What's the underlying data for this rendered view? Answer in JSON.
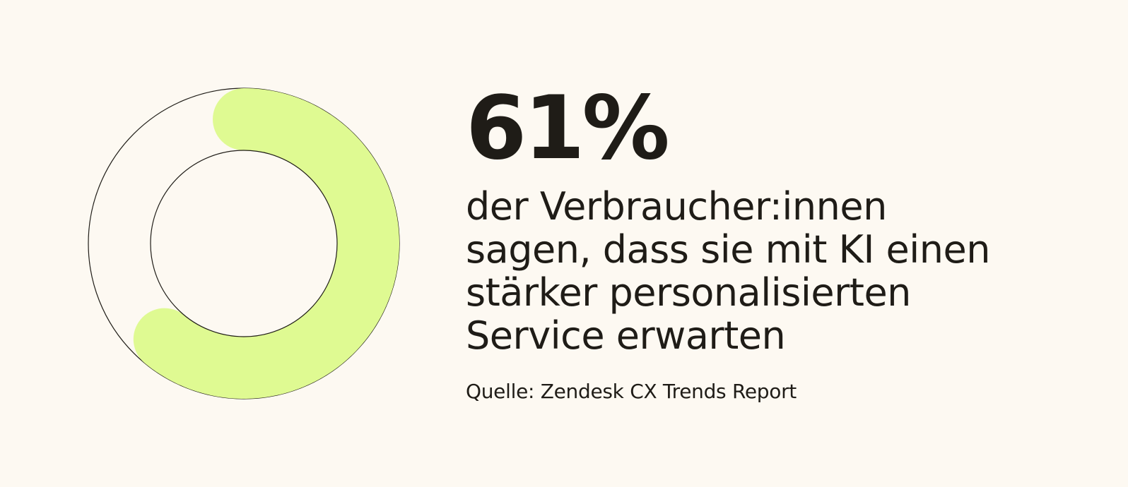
{
  "colors": {
    "background": "#fdf9f2",
    "accent": "#dffa92",
    "outline": "#1f1c17",
    "text": "#1f1c17"
  },
  "chart_data": {
    "type": "pie",
    "values": [
      61,
      39
    ],
    "labels": [
      "61%",
      ""
    ],
    "title": "",
    "unit": "%"
  },
  "stat": {
    "value_label": "61%",
    "statement": "der Verbraucher:innen\nsagen, dass sie mit KI einen\nstärker personalisierten\nService erwarten",
    "source": "Quelle: Zendesk CX Trends Report"
  }
}
